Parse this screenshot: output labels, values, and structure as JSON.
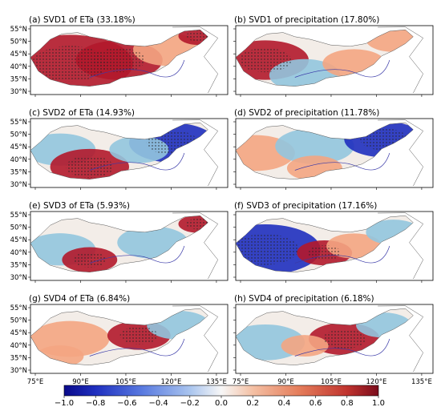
{
  "figure": {
    "panels": [
      {
        "id": "a",
        "title": "(a) SVD1 of ETa (33.18%)"
      },
      {
        "id": "b",
        "title": "(b) SVD1 of precipitation (17.80%)"
      },
      {
        "id": "c",
        "title": "(c) SVD2 of ETa (14.93%)"
      },
      {
        "id": "d",
        "title": "(d) SVD2 of precipitation (11.78%)"
      },
      {
        "id": "e",
        "title": "(e) SVD3 of ETa (5.93%)"
      },
      {
        "id": "f",
        "title": "(f) SVD3 of precipitation (17.16%)"
      },
      {
        "id": "g",
        "title": "(g) SVD4 of ETa (6.84%)"
      },
      {
        "id": "h",
        "title": "(h) SVD4 of precipitation (6.18%)"
      }
    ],
    "lat_ticks": [
      "55°N",
      "50°N",
      "45°N",
      "40°N",
      "35°N",
      "30°N"
    ],
    "lon_ticks": [
      "75°E",
      "90°E",
      "105°E",
      "120°E",
      "135°E"
    ],
    "colorbar": {
      "ticks": [
        "−1.0",
        "−0.8",
        "−0.6",
        "−0.4",
        "−0.2",
        "0.0",
        "0.2",
        "0.4",
        "0.6",
        "0.8",
        "1.0"
      ],
      "min": -1.0,
      "max": 1.0,
      "colormap": "blue-white-red (diverging)"
    },
    "colors": {
      "strong_red": "#b2182b",
      "light_red": "#f4a582",
      "white": "#f7f7f7",
      "light_blue": "#92c5de",
      "strong_blue": "#1f2fbf",
      "boundary": "#555555",
      "river_outline": "#3a3aa8"
    }
  }
}
